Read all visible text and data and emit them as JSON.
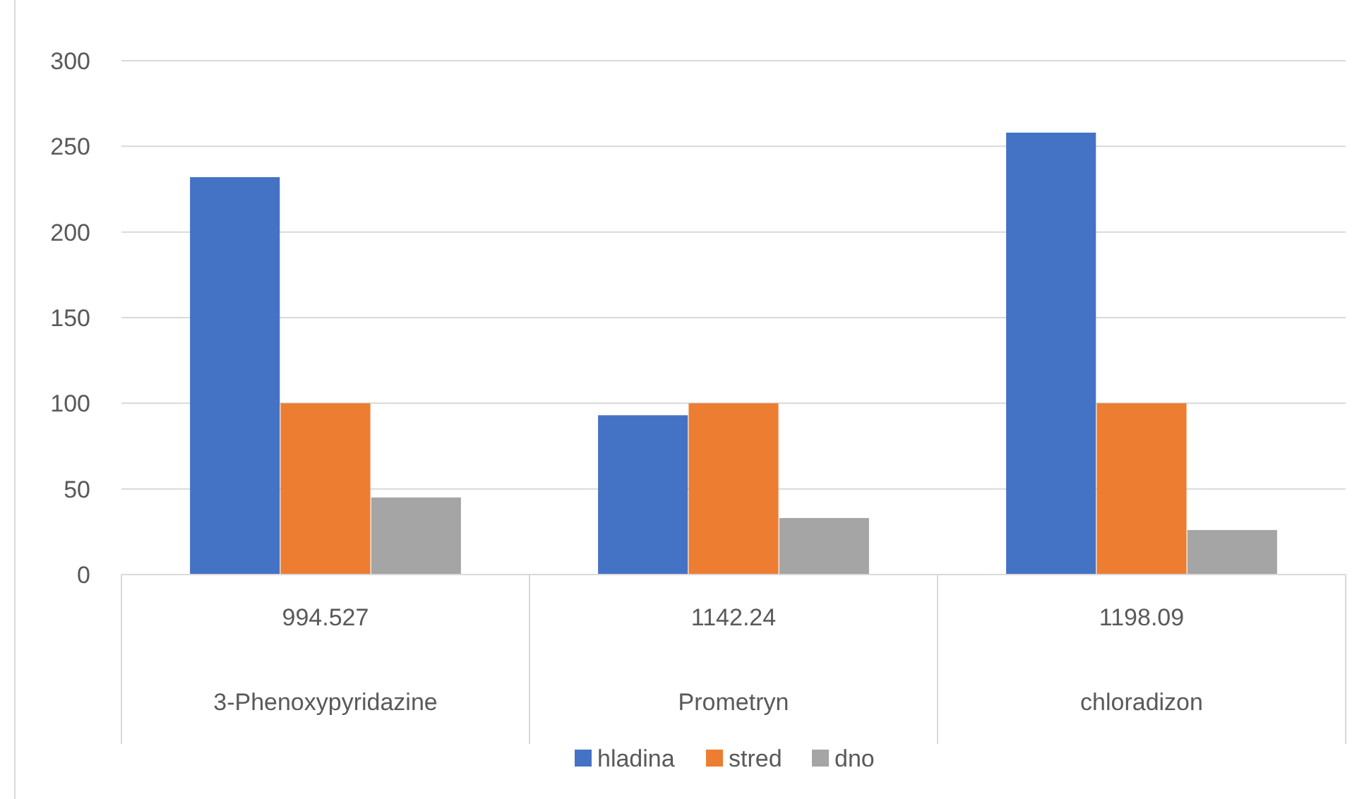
{
  "chart_data": {
    "type": "bar",
    "categories": [
      "994.527\n3-Phenoxypyridazine",
      "1142.24\nPrometryn",
      "1198.09\nchloradizon"
    ],
    "series": [
      {
        "name": "hladina",
        "color": "#4472c4",
        "values": [
          232,
          93,
          258
        ]
      },
      {
        "name": "stred",
        "color": "#ed7d31",
        "values": [
          100,
          100,
          100
        ]
      },
      {
        "name": "dno",
        "color": "#a5a5a5",
        "values": [
          45,
          33,
          26
        ]
      }
    ],
    "ylim": [
      0,
      300
    ],
    "yticks": [
      0,
      50,
      100,
      150,
      200,
      250,
      300
    ],
    "grid": "y",
    "legend": "bottom"
  }
}
